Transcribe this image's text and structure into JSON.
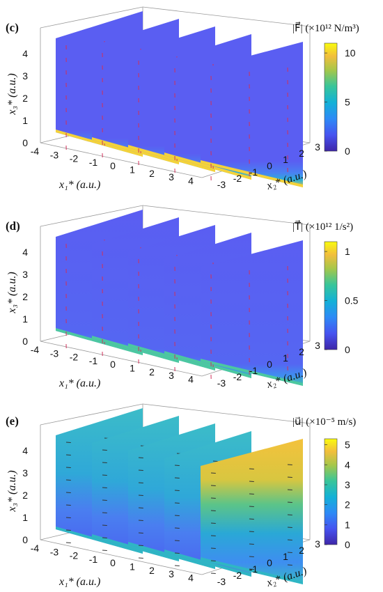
{
  "chart_data": [
    {
      "type": "heatmap",
      "panel_label": "(c)",
      "colorbar_title": "|F⃗| (×10¹² N/m³)",
      "colorbar_ticks": [
        "10",
        "5",
        "0"
      ],
      "colorbar_range": [
        0,
        11
      ],
      "x1_ticks": [
        "-4",
        "-3",
        "-2",
        "-1",
        "0",
        "1",
        "2",
        "3",
        "4"
      ],
      "x2_ticks": [
        "-3",
        "-2",
        "-1",
        "0",
        "1",
        "2",
        "3"
      ],
      "x3_ticks": [
        "0",
        "1",
        "2",
        "3",
        "4"
      ],
      "x1_label": "x₁* (a.u.)",
      "x2_label": "x₂* (a.u.)",
      "x3_label": "x₃* (a.u.)",
      "slices_x1": [
        -3,
        -1,
        1,
        3,
        5
      ],
      "colorscale": "parula",
      "description_values": {
        "max_at_bottom": 11,
        "typical": 0
      }
    },
    {
      "type": "heatmap",
      "panel_label": "(d)",
      "colorbar_title": "|T⃗| (×10¹² 1/s²)",
      "colorbar_ticks": [
        "1",
        "0.5",
        "0"
      ],
      "colorbar_range": [
        0,
        1.1
      ],
      "x1_ticks": [
        "-4",
        "-3",
        "-2",
        "-1",
        "0",
        "1",
        "2",
        "3",
        "4"
      ],
      "x2_ticks": [
        "-3",
        "-2",
        "-1",
        "0",
        "1",
        "2",
        "3"
      ],
      "x3_ticks": [
        "0",
        "1",
        "2",
        "3",
        "4"
      ],
      "x1_label": "x₁* (a.u.)",
      "x2_label": "x₂* (a.u.)",
      "x3_label": "x₃* (a.u.)",
      "slices_x1": [
        -3,
        -1,
        1,
        3,
        5
      ],
      "colorscale": "parula"
    },
    {
      "type": "heatmap",
      "panel_label": "(e)",
      "colorbar_title": "|u⃗| (×10⁻⁵ m/s)",
      "colorbar_ticks": [
        "5",
        "4",
        "3",
        "2",
        "1",
        "0"
      ],
      "colorbar_range": [
        0,
        5.3
      ],
      "x1_ticks": [
        "-4",
        "-3",
        "-2",
        "-1",
        "0",
        "1",
        "2",
        "3",
        "4"
      ],
      "x2_ticks": [
        "-3",
        "-2",
        "-1",
        "0",
        "1",
        "2",
        "3"
      ],
      "x3_ticks": [
        "0",
        "1",
        "2",
        "3",
        "4"
      ],
      "x1_label": "x₁* (a.u.)",
      "x2_label": "x₂* (a.u.)",
      "x3_label": "x₃* (a.u.)",
      "slices_x1": [
        -3,
        -1,
        1,
        3,
        5
      ],
      "colorscale": "parula"
    }
  ],
  "colors": {
    "plane_blue": "#5a5ef0",
    "plane_teal": "#37bcc0",
    "vector_red": "#d0305a"
  }
}
